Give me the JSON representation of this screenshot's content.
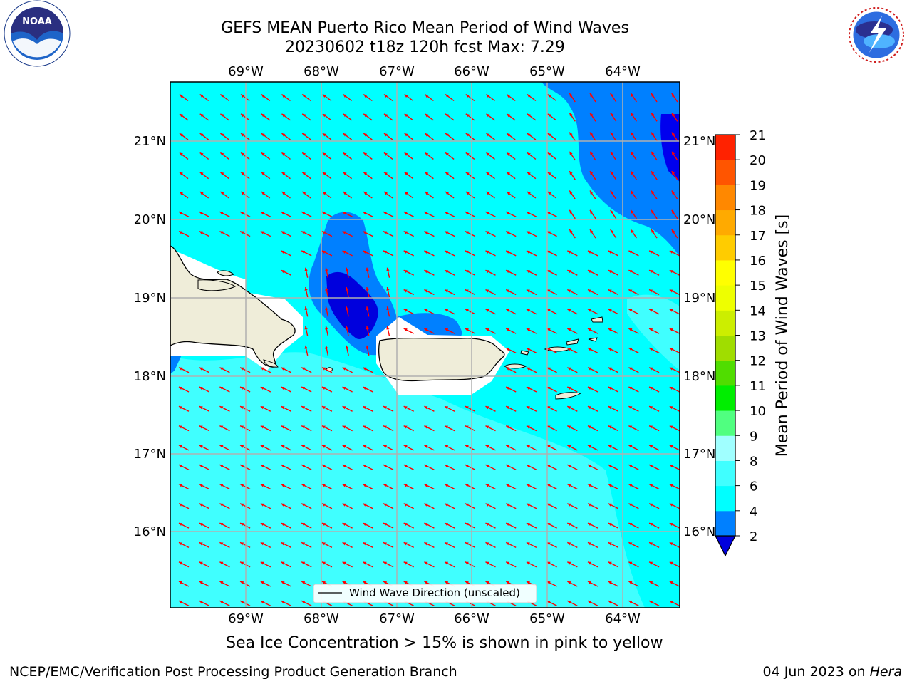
{
  "title": {
    "line1": "GEFS MEAN Puerto Rico Mean Period of Wind Waves",
    "line2": "20230602 t18z 120h fcst   Max: 7.29"
  },
  "logos": {
    "left": {
      "icon": "noaa-logo-icon",
      "ring_text": "NATIONAL OCEANIC AND ATMOSPHERIC ADMINISTRATION • U.S. DEPARTMENT OF COMMERCE",
      "center_text": "NOAA"
    },
    "right": {
      "icon": "nws-logo-icon",
      "ring_text": "NATIONAL WEATHER SERVICE"
    }
  },
  "map": {
    "lon_labels": [
      "69°W",
      "68°W",
      "67°W",
      "66°W",
      "65°W",
      "64°W"
    ],
    "lat_labels": [
      "21°N",
      "20°N",
      "19°N",
      "18°N",
      "17°N",
      "16°N"
    ],
    "legend_label": "Wind Wave Direction (unscaled)",
    "arrow_color": "#ff0000",
    "land_color": "#efedd9"
  },
  "colorbar": {
    "label": "Mean Period of Wind Waves [s]",
    "ticks": [
      "2",
      "4",
      "6",
      "8",
      "9",
      "10",
      "11",
      "12",
      "13",
      "14",
      "15",
      "16",
      "17",
      "18",
      "19",
      "20",
      "21"
    ],
    "colors": [
      "#0000ff",
      "#0080ff",
      "#00ffff",
      "#40ffff",
      "#a0ffff",
      "#50ff80",
      "#00ee00",
      "#50dd00",
      "#a0dd00",
      "#ccee00",
      "#eeff00",
      "#ffff00",
      "#ffcc00",
      "#ffaa00",
      "#ff8800",
      "#ff5500",
      "#ff2200",
      "#ff0000"
    ],
    "under_color": "#0000dd"
  },
  "note": "Sea Ice Concentration > 15% is shown in pink to yellow",
  "footer": {
    "left": "NCEP/EMC/Verification Post Processing Product Generation Branch",
    "date": "04 Jun 2023 on ",
    "machine": "Hera"
  }
}
